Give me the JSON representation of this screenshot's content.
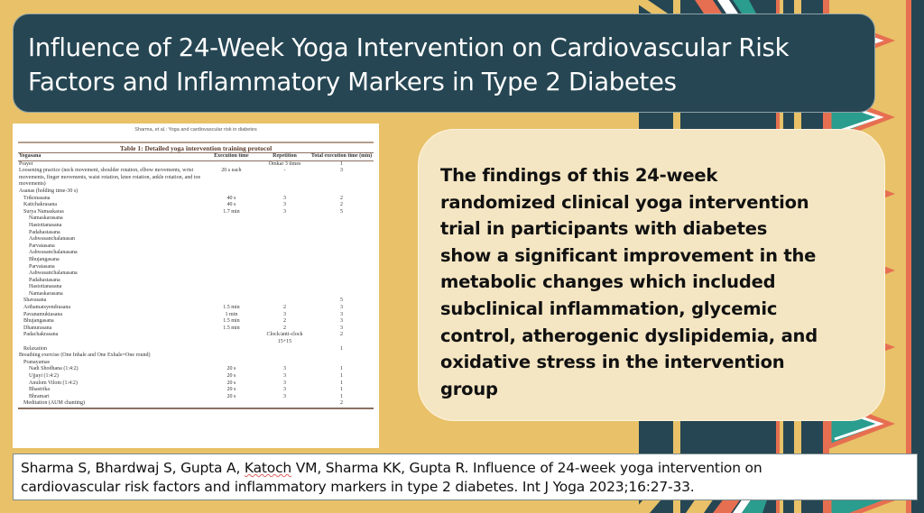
{
  "slide": {
    "title": "Influence of 24-Week Yoga Intervention on Cardiovascular Risk Factors and Inflammatory Markers in Type 2 Diabetes",
    "title_lines": [
      "Influence of 24-Week Yoga Intervention on Cardiovascular Risk",
      "Factors and Inflammatory Markers in Type 2 Diabetes"
    ],
    "colors": {
      "background": "#E8C168",
      "title_box": "#264653",
      "findings_box": "#F5E6C3",
      "pattern_teal": "#2A9D8F",
      "pattern_coral": "#E76F51",
      "pattern_dark": "#264653"
    }
  },
  "table_panel": {
    "running_head": "Sharma, et al.: Yoga and cardiovascular risk in diabetes",
    "title": "Table 1: Detailed yoga intervention training protocol",
    "headers": [
      "Yogasana",
      "Execution time",
      "Repetition",
      "Total execution time (min)"
    ],
    "rows": [
      {
        "name": "Prayer",
        "indent": 0,
        "exec": "",
        "rep": "Omkar 3 times",
        "total": "1"
      },
      {
        "name": "Loosening practice (neck movement, shoulder rotation, elbow movements, wrist movements, finger movements, waist rotation, knee rotation, ankle rotation, and toe movements)",
        "indent": 0,
        "exec": "20 s each",
        "rep": "-",
        "total": "3"
      },
      {
        "name": "Asanas (holding time-30 s)",
        "indent": 0,
        "exec": "",
        "rep": "",
        "total": ""
      },
      {
        "name": "Trikonasana",
        "indent": 1,
        "exec": "40 s",
        "rep": "3",
        "total": "2"
      },
      {
        "name": "Katichakrasana",
        "indent": 1,
        "exec": "40 s",
        "rep": "3",
        "total": "2"
      },
      {
        "name": "Surya Namaskaras",
        "indent": 1,
        "exec": "1.7 min",
        "rep": "3",
        "total": "5"
      },
      {
        "name": "Namaskarasana",
        "indent": 2,
        "exec": "",
        "rep": "",
        "total": ""
      },
      {
        "name": "Hastottanasana",
        "indent": 2,
        "exec": "",
        "rep": "",
        "total": ""
      },
      {
        "name": "Padahastasana",
        "indent": 2,
        "exec": "",
        "rep": "",
        "total": ""
      },
      {
        "name": "Ashwasanchalanasan",
        "indent": 2,
        "exec": "",
        "rep": "",
        "total": ""
      },
      {
        "name": "Parvatasana",
        "indent": 2,
        "exec": "",
        "rep": "",
        "total": ""
      },
      {
        "name": "Ashwasanchalanasana",
        "indent": 2,
        "exec": "",
        "rep": "",
        "total": ""
      },
      {
        "name": "Bhujangasana",
        "indent": 2,
        "exec": "",
        "rep": "",
        "total": ""
      },
      {
        "name": "Parvatasana",
        "indent": 2,
        "exec": "",
        "rep": "",
        "total": ""
      },
      {
        "name": "Ashwasanchalanasana",
        "indent": 2,
        "exec": "",
        "rep": "",
        "total": ""
      },
      {
        "name": "Padahastasana",
        "indent": 2,
        "exec": "",
        "rep": "",
        "total": ""
      },
      {
        "name": "Hastottanasana",
        "indent": 2,
        "exec": "",
        "rep": "",
        "total": ""
      },
      {
        "name": "Namaskarasana",
        "indent": 2,
        "exec": "",
        "rep": "",
        "total": ""
      },
      {
        "name": "Shavasana",
        "indent": 1,
        "exec": "",
        "rep": "",
        "total": "5"
      },
      {
        "name": "Arthamatsyendrasana",
        "indent": 1,
        "exec": "1.5 min",
        "rep": "2",
        "total": "3"
      },
      {
        "name": "Pavanamuktasana",
        "indent": 1,
        "exec": "1 min",
        "rep": "3",
        "total": "3"
      },
      {
        "name": "Bhujangasana",
        "indent": 1,
        "exec": "1.5 min",
        "rep": "2",
        "total": "3"
      },
      {
        "name": "Dhanurasana",
        "indent": 1,
        "exec": "1.5 min",
        "rep": "2",
        "total": "3"
      },
      {
        "name": "Padachakrasana",
        "indent": 1,
        "exec": "",
        "rep": "Clock/anti-clock 15+15",
        "total": "2"
      },
      {
        "name": "Relaxation",
        "indent": 1,
        "exec": "",
        "rep": "",
        "total": "1"
      },
      {
        "name": "Breathing exercise (One Inhale and One Exhale=One round)",
        "indent": 0,
        "exec": "",
        "rep": "",
        "total": ""
      },
      {
        "name": "Pranayamas",
        "indent": 1,
        "exec": "",
        "rep": "",
        "total": ""
      },
      {
        "name": "Nadi Shodhana (1:4:2)",
        "indent": 2,
        "exec": "20 s",
        "rep": "3",
        "total": "1"
      },
      {
        "name": "Ujjayi (1:4:2)",
        "indent": 2,
        "exec": "20 s",
        "rep": "3",
        "total": "1"
      },
      {
        "name": "Anulom Vilom (1:4:2)",
        "indent": 2,
        "exec": "20 s",
        "rep": "3",
        "total": "1"
      },
      {
        "name": "Bhastrika",
        "indent": 2,
        "exec": "20 s",
        "rep": "3",
        "total": "1"
      },
      {
        "name": "Bhramari",
        "indent": 2,
        "exec": "20 s",
        "rep": "3",
        "total": "1"
      },
      {
        "name": "Meditation (AUM chanting)",
        "indent": 1,
        "exec": "",
        "rep": "",
        "total": "2"
      }
    ]
  },
  "findings": {
    "text": "The findings of this 24-week randomized clinical yoga intervention trial in participants with diabetes show a significant improvement in the metabolic changes which included subclinical inflammation, glycemic control, atherogenic dyslipidemia, and oxidative stress in the intervention group",
    "lines": [
      "The findings of this 24-week",
      "randomized clinical yoga intervention",
      "trial in participants with diabetes",
      "show a significant improvement in the",
      "metabolic changes which included",
      "subclinical inflammation, glycemic",
      "control, atherogenic dyslipidemia, and",
      "oxidative stress in the intervention",
      "group"
    ]
  },
  "citation": {
    "text": "Sharma S, Bhardwaj S, Gupta A, Katoch VM, Sharma KK, Gupta R. Influence of 24-week yoga intervention on cardiovascular risk factors and inflammatory markers in type 2 diabetes. Int J Yoga 2023;16:27-33.",
    "line1_before": "Sharma S, Bhardwaj S, Gupta A, ",
    "line1_flagged": "Katoch",
    "line1_after": " VM, Sharma KK, Gupta R. Influence of 24-week yoga intervention on",
    "line2": "cardiovascular risk factors and inflammatory markers in type 2 diabetes. Int J Yoga 2023;16:27-33."
  }
}
